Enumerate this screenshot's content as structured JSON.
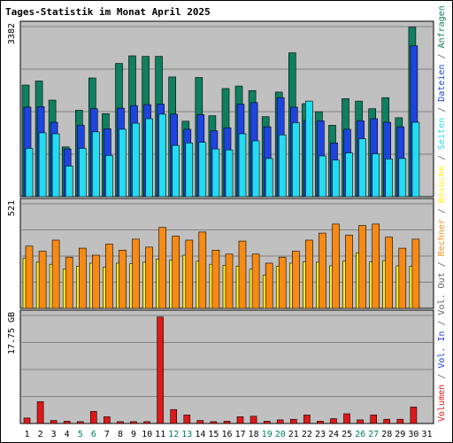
{
  "chart_data": {
    "type": "bar",
    "title": "Tages-Statistik im Monat April 2025",
    "x": [
      "1",
      "2",
      "3",
      "4",
      "5",
      "6",
      "7",
      "8",
      "9",
      "10",
      "11",
      "12",
      "13",
      "14",
      "15",
      "16",
      "17",
      "18",
      "19",
      "20",
      "21",
      "22",
      "23",
      "24",
      "25",
      "26",
      "27",
      "28",
      "29",
      "30",
      "31"
    ],
    "weekend_days": [
      5,
      6,
      12,
      13,
      19,
      20,
      26,
      27
    ],
    "panels": [
      {
        "max_label": "3382",
        "ymax": 3382,
        "series": [
          {
            "name": "Anfragen",
            "color": "#0f7f5f",
            "values": [
              2220,
              2300,
              1920,
              990,
              1720,
              2360,
              1650,
              2650,
              2800,
              2790,
              2790,
              2380,
              1500,
              2370,
              1610,
              2150,
              2200,
              2110,
              1590,
              2080,
              2860,
              1850,
              1690,
              1420,
              1950,
              1900,
              1750,
              1970,
              1570,
              3370,
              null
            ]
          },
          {
            "name": "Dateien",
            "color": "#1e44e0",
            "values": [
              1780,
              1790,
              1480,
              950,
              1420,
              1750,
              1350,
              1760,
              1810,
              1830,
              1840,
              1640,
              1340,
              1630,
              1310,
              1370,
              1840,
              1870,
              1390,
              1970,
              1780,
              1520,
              1510,
              1070,
              1340,
              1510,
              1550,
              1480,
              1390,
              3000,
              null
            ]
          },
          {
            "name": "Seiten",
            "color": "#22dcf0",
            "values": [
              960,
              1270,
              1250,
              610,
              960,
              1290,
              820,
              1340,
              1460,
              1550,
              1640,
              1020,
              1070,
              1080,
              950,
              930,
              1250,
              1110,
              760,
              1230,
              1470,
              1900,
              810,
              730,
              870,
              1150,
              850,
              750,
              760,
              1480,
              null
            ]
          }
        ]
      },
      {
        "max_label": "521",
        "ymax": 521,
        "series": [
          {
            "name": "Besuche",
            "color": "#ffef20",
            "values": [
              250,
              230,
              220,
              195,
              210,
              225,
              205,
              225,
              222,
              230,
              245,
              240,
              265,
              235,
              220,
              215,
              210,
              195,
              165,
              210,
              225,
              232,
              230,
              212,
              235,
              277,
              232,
              238,
              212,
              210,
              null
            ]
          },
          {
            "name": "Rechner",
            "color": "#f88a14",
            "values": [
              310,
              285,
              340,
              255,
              300,
              265,
              320,
              290,
              345,
              305,
              403,
              360,
              340,
              380,
              290,
              270,
              335,
              270,
              225,
              255,
              285,
              340,
              375,
              420,
              365,
              413,
              420,
              355,
              300,
              345,
              null
            ]
          }
        ]
      },
      {
        "max_label": "17.75 GB",
        "ymax": 17.75,
        "series": [
          {
            "name": "Volumen",
            "color": "#e01818",
            "values": [
              0.9,
              3.6,
              0.5,
              0.4,
              0.3,
              2.0,
              1.1,
              0.3,
              0.3,
              0.3,
              17.5,
              2.3,
              1.4,
              0.5,
              0.3,
              0.4,
              1.1,
              1.2,
              0.4,
              0.6,
              0.7,
              1.4,
              0.4,
              0.8,
              1.6,
              0.6,
              1.4,
              0.7,
              0.7,
              2.7,
              null
            ]
          }
        ]
      }
    ],
    "right_legend": [
      {
        "text": "Volumen",
        "color": "#e01818"
      },
      {
        "text": " / ",
        "color": "#606060"
      },
      {
        "text": "Vol. In",
        "color": "#1e44e0"
      },
      {
        "text": " / ",
        "color": "#606060"
      },
      {
        "text": "Vol. Out",
        "color": "#606060"
      },
      {
        "text": " / ",
        "color": "#606060"
      },
      {
        "text": "Rechner",
        "color": "#f88a14"
      },
      {
        "text": " / ",
        "color": "#606060"
      },
      {
        "text": "Besuche",
        "color": "#ffef20"
      },
      {
        "text": " / ",
        "color": "#606060"
      },
      {
        "text": "Seiten",
        "color": "#22dcf0"
      },
      {
        "text": " / ",
        "color": "#606060"
      },
      {
        "text": "Dateien",
        "color": "#1e44e0"
      },
      {
        "text": " / ",
        "color": "#606060"
      },
      {
        "text": "Anfragen",
        "color": "#0f7f5f"
      }
    ],
    "colors": {
      "title": "#0000cc",
      "plot_background": "#c0c0c0",
      "grid": "#808080",
      "weekday_tick": "#000000",
      "weekend_tick": "#00805f",
      "frame": "#000000"
    },
    "grid": true
  }
}
